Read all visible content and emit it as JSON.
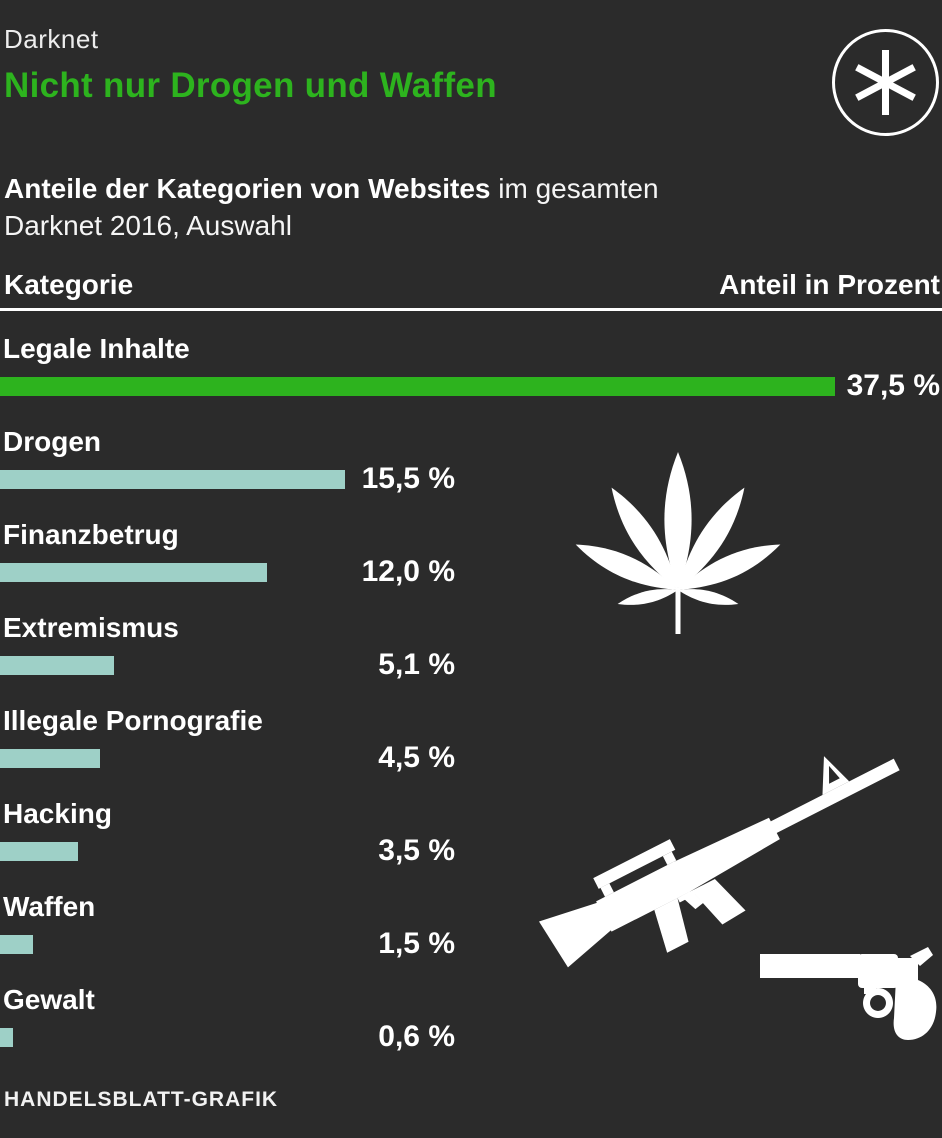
{
  "page": {
    "background_color": "#2b2b2b",
    "accent_green": "#2db31e",
    "bar_teal": "#9ed0c7",
    "text_white": "#ffffff"
  },
  "header": {
    "kicker": "Darknet",
    "title": "Nicht nur Drogen und Waffen",
    "subtitle_bold": "Anteile der Kategorien von Websites",
    "subtitle_rest": " im gesamten",
    "subtitle_line2": "Darknet 2016, Auswahl"
  },
  "table_header": {
    "left": "Kategorie",
    "right": "Anteil in Prozent"
  },
  "chart_data": {
    "type": "bar",
    "orientation": "horizontal",
    "title": "Nicht nur Drogen und Waffen",
    "subtitle": "Anteile der Kategorien von Websites im gesamten Darknet 2016, Auswahl",
    "categories": [
      "Legale Inhalte",
      "Drogen",
      "Finanzbetrug",
      "Extremismus",
      "Illegale Pornografie",
      "Hacking",
      "Waffen",
      "Gewalt"
    ],
    "values": [
      37.5,
      15.5,
      12.0,
      5.1,
      4.5,
      3.5,
      1.5,
      0.6
    ],
    "value_labels": [
      "37,5 %",
      "15,5 %",
      "12,0 %",
      "5,1 %",
      "4,5 %",
      "3,5 %",
      "1,5 %",
      "0,6 %"
    ],
    "unit": "Prozent",
    "xlim": [
      0,
      37.5
    ],
    "grid": false,
    "legend": false,
    "highlight_index": 0,
    "highlight_color": "#2db31e",
    "bar_color": "#9ed0c7"
  },
  "icons": {
    "logo": "asterisk-icon",
    "drugs": "cannabis-leaf-icon",
    "rifle": "rifle-icon",
    "revolver": "revolver-icon"
  },
  "footer": {
    "credit": "HANDELSBLATT-GRAFIK"
  }
}
